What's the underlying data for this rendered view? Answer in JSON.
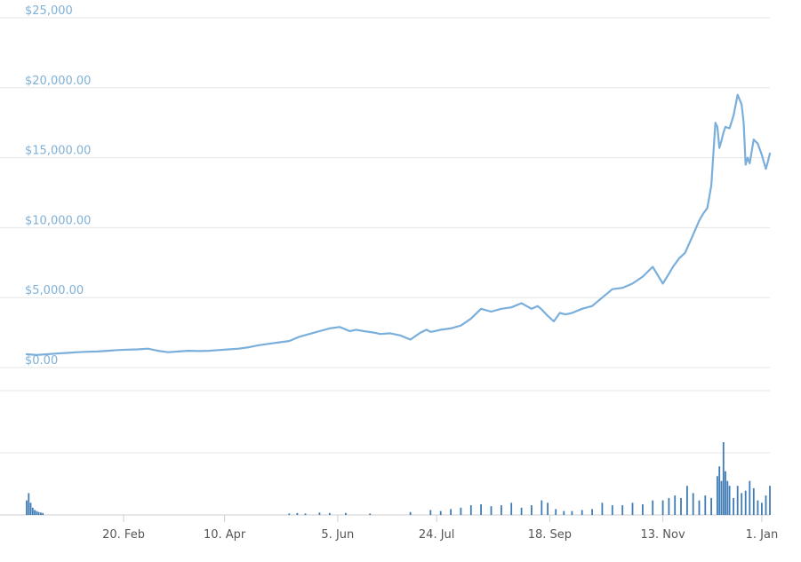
{
  "chart_data": [
    {
      "type": "line",
      "title": "",
      "xlabel": "",
      "ylabel": "",
      "y_tick_labels": [
        "$25,000",
        "$20,000.00",
        "$15,000.00",
        "$10,000.00",
        "$5,000.00",
        "$0.00"
      ],
      "y_ticks": [
        25000,
        20000,
        15000,
        10000,
        5000,
        0
      ],
      "ylim": [
        0,
        25000
      ],
      "x_tick_labels": [
        "20. Feb",
        "10. Apr",
        "5. Jun",
        "24. Jul",
        "18. Sep",
        "13. Nov",
        "1. Jan"
      ],
      "x_tick_positions": [
        48,
        98,
        154,
        203,
        259,
        315,
        364
      ],
      "xlim": [
        0,
        368
      ],
      "grid": true,
      "legend": "none",
      "line_color": "#7aaedb",
      "series": [
        {
          "x": [
            0,
            5,
            10,
            15,
            20,
            25,
            30,
            35,
            40,
            45,
            50,
            55,
            60,
            65,
            70,
            75,
            80,
            85,
            90,
            95,
            100,
            105,
            110,
            115,
            120,
            125,
            130,
            135,
            140,
            145,
            150,
            155,
            160,
            163,
            167,
            172,
            175,
            180,
            185,
            190,
            195,
            198,
            200,
            202,
            205,
            210,
            215,
            220,
            225,
            230,
            235,
            240,
            245,
            250,
            253,
            255,
            258,
            261,
            264,
            267,
            270,
            275,
            280,
            285,
            290,
            295,
            300,
            305,
            310,
            315,
            318,
            320,
            323,
            326,
            330,
            333,
            335,
            337,
            339,
            341,
            342,
            343,
            344,
            345,
            346,
            348,
            350,
            352,
            354,
            355,
            356,
            357,
            358,
            360,
            362,
            364,
            366,
            367,
            368
          ],
          "y": [
            950,
            900,
            950,
            1000,
            1050,
            1100,
            1130,
            1150,
            1200,
            1250,
            1280,
            1300,
            1350,
            1200,
            1100,
            1150,
            1200,
            1180,
            1200,
            1250,
            1300,
            1350,
            1450,
            1600,
            1700,
            1800,
            1900,
            2200,
            2400,
            2600,
            2800,
            2900,
            2600,
            2700,
            2600,
            2500,
            2400,
            2450,
            2300,
            2000,
            2500,
            2700,
            2550,
            2600,
            2700,
            2800,
            3000,
            3500,
            4200,
            4000,
            4200,
            4300,
            4600,
            4200,
            4400,
            4150,
            3700,
            3300,
            3900,
            3800,
            3900,
            4200,
            4400,
            5000,
            5600,
            5700,
            6000,
            6500,
            7200,
            6000,
            6700,
            7200,
            7800,
            8200,
            9500,
            10500,
            11000,
            11400,
            13000,
            17500,
            17200,
            15700,
            16200,
            16800,
            17200,
            17100,
            18000,
            19500,
            18800,
            17500,
            14500,
            15000,
            14600,
            16300,
            16000,
            15200,
            14200,
            14700,
            15300
          ]
        }
      ]
    },
    {
      "type": "bar",
      "title": "",
      "xlabel": "",
      "ylabel": "",
      "grid": true,
      "legend": "none",
      "bar_color": "#3f7cb5",
      "x": [
        0,
        1,
        2,
        3,
        4,
        5,
        6,
        7,
        8,
        130,
        134,
        138,
        145,
        150,
        158,
        170,
        190,
        200,
        205,
        210,
        215,
        220,
        225,
        230,
        235,
        240,
        245,
        250,
        255,
        258,
        262,
        266,
        270,
        275,
        280,
        285,
        290,
        295,
        300,
        305,
        310,
        315,
        318,
        321,
        324,
        327,
        330,
        333,
        336,
        339,
        342,
        343,
        344,
        345,
        346,
        347,
        348,
        350,
        352,
        354,
        356,
        358,
        360,
        362,
        364,
        366,
        368
      ],
      "values": [
        0.3,
        0.45,
        0.25,
        0.15,
        0.1,
        0.08,
        0.06,
        0.05,
        0.04,
        0.03,
        0.04,
        0.03,
        0.05,
        0.04,
        0.04,
        0.03,
        0.06,
        0.1,
        0.08,
        0.12,
        0.15,
        0.2,
        0.22,
        0.18,
        0.2,
        0.25,
        0.15,
        0.2,
        0.3,
        0.25,
        0.12,
        0.08,
        0.08,
        0.1,
        0.12,
        0.25,
        0.2,
        0.2,
        0.25,
        0.22,
        0.3,
        0.3,
        0.35,
        0.4,
        0.35,
        0.6,
        0.45,
        0.3,
        0.4,
        0.35,
        0.8,
        1.0,
        0.7,
        1.5,
        0.9,
        0.7,
        0.6,
        0.35,
        0.6,
        0.45,
        0.5,
        0.7,
        0.55,
        0.3,
        0.25,
        0.4,
        0.6
      ]
    }
  ]
}
